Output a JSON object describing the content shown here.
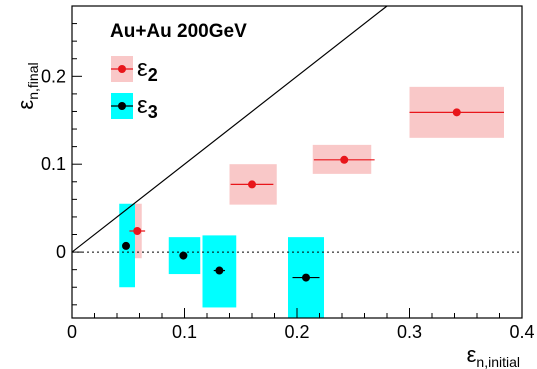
{
  "chart_data": {
    "type": "scatter",
    "title": "Au+Au 200GeV",
    "xlabel": "n,initial",
    "ylabel": "n,final",
    "xlim": [
      0,
      0.4
    ],
    "ylim": [
      -0.075,
      0.28
    ],
    "x_ticks": [
      0,
      0.1,
      0.2,
      0.3,
      0.4
    ],
    "x_tick_labels": [
      "0",
      "0.1",
      "0.2",
      "0.3",
      "0.4"
    ],
    "y_ticks": [
      0,
      0.1,
      0.2
    ],
    "y_tick_labels": [
      "0",
      "0.1",
      "0.2"
    ],
    "reference_lines": [
      {
        "kind": "diagonal",
        "from": [
          0,
          0
        ],
        "to": [
          0.28,
          0.28
        ]
      },
      {
        "kind": "horizontal-dotted",
        "y": 0
      }
    ],
    "legend": {
      "placement": "top-left",
      "entries": [
        {
          "symbol": "ε",
          "sub": "2",
          "series_index": 0
        },
        {
          "symbol": "ε",
          "sub": "3",
          "series_index": 1
        }
      ]
    },
    "series": [
      {
        "color": "#e8161b",
        "box_color": "#f9c8c8",
        "points": [
          {
            "x": 0.058,
            "y": 0.024,
            "xerr": 0.007,
            "yerr": 0.0,
            "box_x": [
              0.054,
              0.062
            ],
            "box_y": [
              -0.007,
              0.055
            ]
          },
          {
            "x": 0.16,
            "y": 0.077,
            "xerr": 0.019,
            "yerr": 0.0,
            "box_x": [
              0.14,
              0.182
            ],
            "box_y": [
              0.054,
              0.1
            ]
          },
          {
            "x": 0.242,
            "y": 0.105,
            "xerr": 0.027,
            "yerr": 0.0,
            "box_x": [
              0.214,
              0.266
            ],
            "box_y": [
              0.089,
              0.122
            ]
          },
          {
            "x": 0.342,
            "y": 0.159,
            "xerr": 0.042,
            "yerr": 0.0,
            "box_x": [
              0.3,
              0.384
            ],
            "box_y": [
              0.13,
              0.188
            ]
          }
        ]
      },
      {
        "color": "#000000",
        "box_color": "#00ffff",
        "points": [
          {
            "x": 0.048,
            "y": 0.007,
            "xerr": 0.0,
            "yerr": 0.0,
            "box_x": [
              0.042,
              0.056
            ],
            "box_y": [
              -0.04,
              0.055
            ]
          },
          {
            "x": 0.099,
            "y": -0.004,
            "xerr": 0.0,
            "yerr": 0.0,
            "box_x": [
              0.086,
              0.114
            ],
            "box_y": [
              -0.025,
              0.017
            ]
          },
          {
            "x": 0.131,
            "y": -0.021,
            "xerr": 0.005,
            "yerr": 0.0,
            "box_x": [
              0.116,
              0.146
            ],
            "box_y": [
              -0.063,
              0.019
            ]
          },
          {
            "x": 0.208,
            "y": -0.029,
            "xerr": 0.012,
            "yerr": 0.0,
            "box_x": [
              0.192,
              0.224
            ],
            "box_y": [
              -0.075,
              0.017
            ]
          }
        ]
      }
    ]
  }
}
